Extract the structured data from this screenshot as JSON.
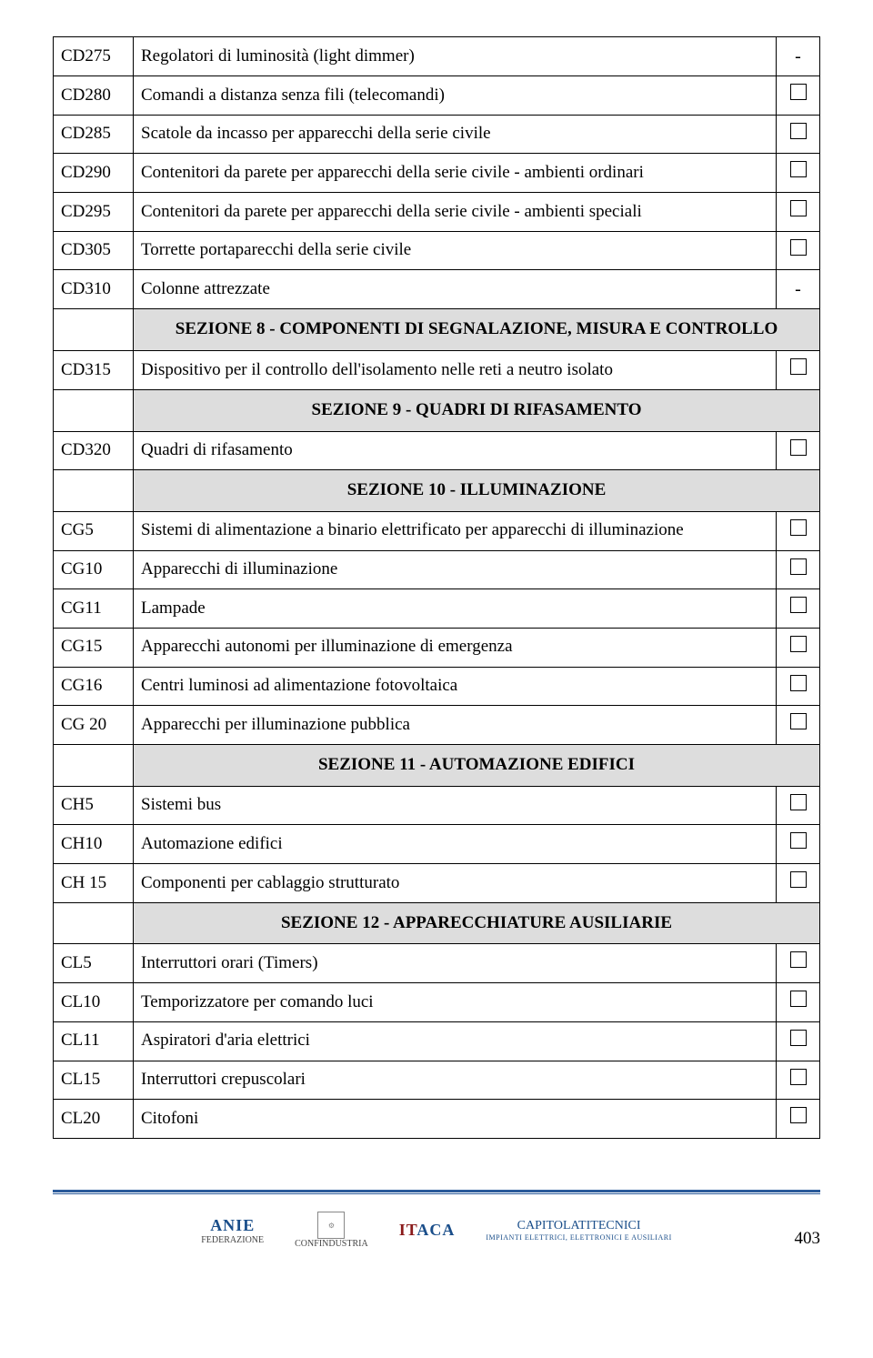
{
  "rows": [
    {
      "code": "CD275",
      "desc": "Regolatori di luminosità (light dimmer)",
      "mark": "dash"
    },
    {
      "code": "CD280",
      "desc": "Comandi a distanza senza fili (telecomandi)",
      "mark": "box"
    },
    {
      "code": "CD285",
      "desc": "Scatole da incasso per apparecchi della serie civile",
      "mark": "box"
    },
    {
      "code": "CD290",
      "desc": "Contenitori da parete per apparecchi della serie civile - ambienti ordinari",
      "mark": "box"
    },
    {
      "code": "CD295",
      "desc": "Contenitori da parete per apparecchi della serie civile - ambienti speciali",
      "mark": "box"
    },
    {
      "code": "CD305",
      "desc": "Torrette portaparecchi della serie civile",
      "mark": "box"
    },
    {
      "code": "CD310",
      "desc": "Colonne attrezzate",
      "mark": "dash"
    },
    {
      "section": "SEZIONE 8 - COMPONENTI DI SEGNALAZIONE, MISURA E CONTROLLO"
    },
    {
      "code": "CD315",
      "desc": "Dispositivo per il controllo dell'isolamento nelle reti a neutro isolato",
      "mark": "box"
    },
    {
      "section": "SEZIONE 9 - QUADRI DI RIFASAMENTO"
    },
    {
      "code": "CD320",
      "desc": "Quadri di rifasamento",
      "mark": "box"
    },
    {
      "section": "SEZIONE 10 - ILLUMINAZIONE"
    },
    {
      "code": "CG5",
      "desc": "Sistemi di alimentazione a binario elettrificato per apparecchi di illuminazione",
      "mark": "box"
    },
    {
      "code": "CG10",
      "desc": "Apparecchi di illuminazione",
      "mark": "box"
    },
    {
      "code": "CG11",
      "desc": "Lampade",
      "mark": "box"
    },
    {
      "code": "CG15",
      "desc": "Apparecchi autonomi per illuminazione di emergenza",
      "mark": "box"
    },
    {
      "code": "CG16",
      "desc": "Centri luminosi ad alimentazione fotovoltaica",
      "mark": "box"
    },
    {
      "code": "CG 20",
      "desc": "Apparecchi per illuminazione pubblica",
      "mark": "box"
    },
    {
      "section": "SEZIONE 11 - AUTOMAZIONE EDIFICI"
    },
    {
      "code": "CH5",
      "desc": "Sistemi bus",
      "mark": "box"
    },
    {
      "code": "CH10",
      "desc": "Automazione edifici",
      "mark": "box"
    },
    {
      "code": "CH 15",
      "desc": "Componenti per cablaggio strutturato",
      "mark": "box"
    },
    {
      "section": "SEZIONE 12 - APPARECCHIATURE AUSILIARIE"
    },
    {
      "code": "CL5",
      "desc": "Interruttori orari (Timers)",
      "mark": "box"
    },
    {
      "code": "CL10",
      "desc": "Temporizzatore per comando luci",
      "mark": "box"
    },
    {
      "code": "CL11",
      "desc": "Aspiratori d'aria elettrici",
      "mark": "box"
    },
    {
      "code": "CL15",
      "desc": "Interruttori crepuscolari",
      "mark": "box"
    },
    {
      "code": "CL20",
      "desc": "Citofoni",
      "mark": "box"
    }
  ],
  "footer": {
    "anie": "ANIE",
    "anie_sub": "FEDERAZIONE",
    "conf": "CONFINDUSTRIA",
    "itaca": "ITACA",
    "cap_top": "CAPITOLATITECNICI",
    "cap_sub": "IMPIANTI ELETTRICI, ELETTRONICI E AUSILIARI",
    "page_number": "403"
  }
}
